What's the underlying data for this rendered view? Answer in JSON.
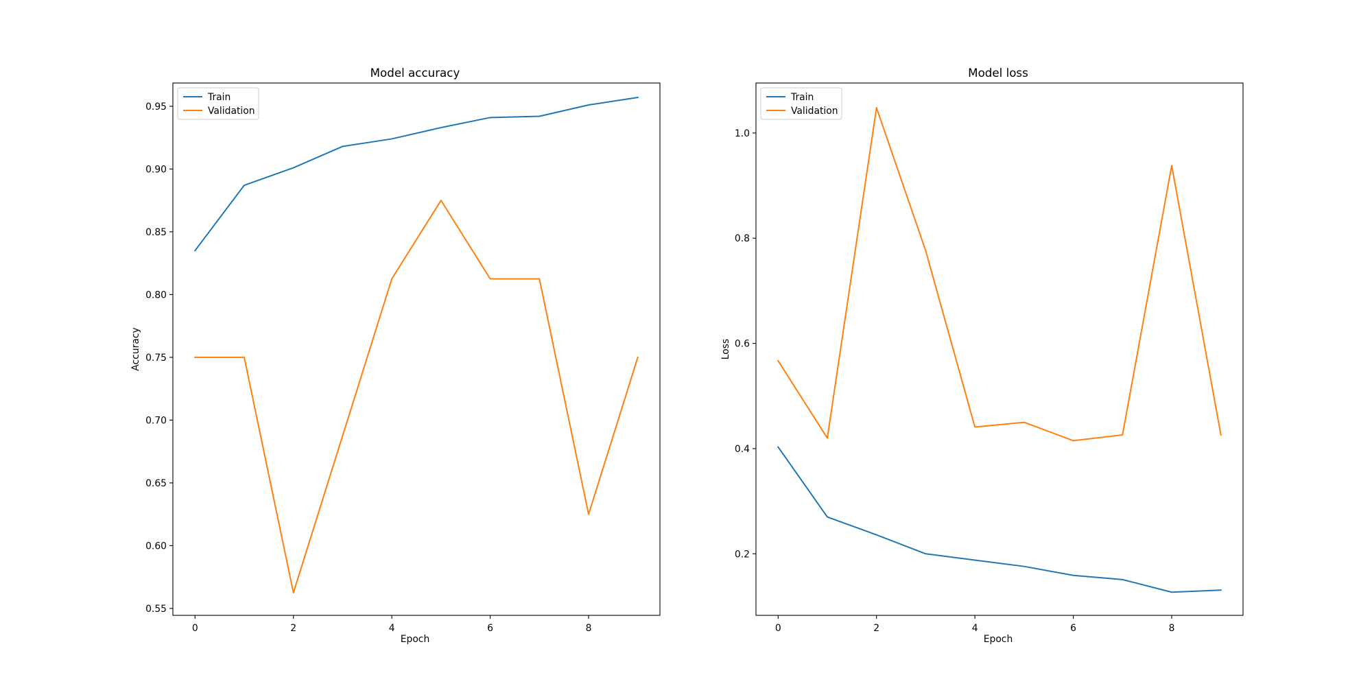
{
  "colors": {
    "train": "#1f77b4",
    "validation": "#ff7f0e",
    "axes": "#000000",
    "background": "#ffffff"
  },
  "chart_data": [
    {
      "type": "line",
      "title": "Model accuracy",
      "xlabel": "Epoch",
      "ylabel": "Accuracy",
      "xlim": [
        -0.45,
        9.45
      ],
      "ylim": [
        0.5445,
        0.9685
      ],
      "xticks": [
        0,
        2,
        4,
        6,
        8
      ],
      "xtick_labels": [
        "0",
        "2",
        "4",
        "6",
        "8"
      ],
      "yticks": [
        0.55,
        0.6,
        0.65,
        0.7,
        0.75,
        0.8,
        0.85,
        0.9,
        0.95
      ],
      "ytick_labels": [
        "0.55",
        "0.60",
        "0.65",
        "0.70",
        "0.75",
        "0.80",
        "0.85",
        "0.90",
        "0.95"
      ],
      "legend_position": "upper-left",
      "x": [
        0,
        1,
        2,
        3,
        4,
        5,
        6,
        7,
        8,
        9
      ],
      "series": [
        {
          "name": "Train",
          "color": "#1f77b4",
          "values": [
            0.835,
            0.887,
            0.901,
            0.918,
            0.924,
            0.933,
            0.941,
            0.942,
            0.951,
            0.957
          ]
        },
        {
          "name": "Validation",
          "color": "#ff7f0e",
          "values": [
            0.75,
            0.75,
            0.5625,
            0.6875,
            0.8125,
            0.875,
            0.8125,
            0.8125,
            0.625,
            0.75
          ]
        }
      ]
    },
    {
      "type": "line",
      "title": "Model loss",
      "xlabel": "Epoch",
      "ylabel": "Loss",
      "xlim": [
        -0.45,
        9.45
      ],
      "ylim": [
        0.083,
        1.095
      ],
      "xticks": [
        0,
        2,
        4,
        6,
        8
      ],
      "xtick_labels": [
        "0",
        "2",
        "4",
        "6",
        "8"
      ],
      "yticks": [
        0.2,
        0.4,
        0.6,
        0.8,
        1.0
      ],
      "ytick_labels": [
        "0.2",
        "0.4",
        "0.6",
        "0.8",
        "1.0"
      ],
      "legend_position": "upper-left",
      "x": [
        0,
        1,
        2,
        3,
        4,
        5,
        6,
        7,
        8,
        9
      ],
      "series": [
        {
          "name": "Train",
          "color": "#1f77b4",
          "values": [
            0.403,
            0.27,
            0.236,
            0.2,
            0.188,
            0.176,
            0.159,
            0.151,
            0.127,
            0.131
          ]
        },
        {
          "name": "Validation",
          "color": "#ff7f0e",
          "values": [
            0.567,
            0.42,
            1.048,
            0.776,
            0.441,
            0.45,
            0.415,
            0.426,
            0.938,
            0.426
          ]
        }
      ]
    }
  ]
}
